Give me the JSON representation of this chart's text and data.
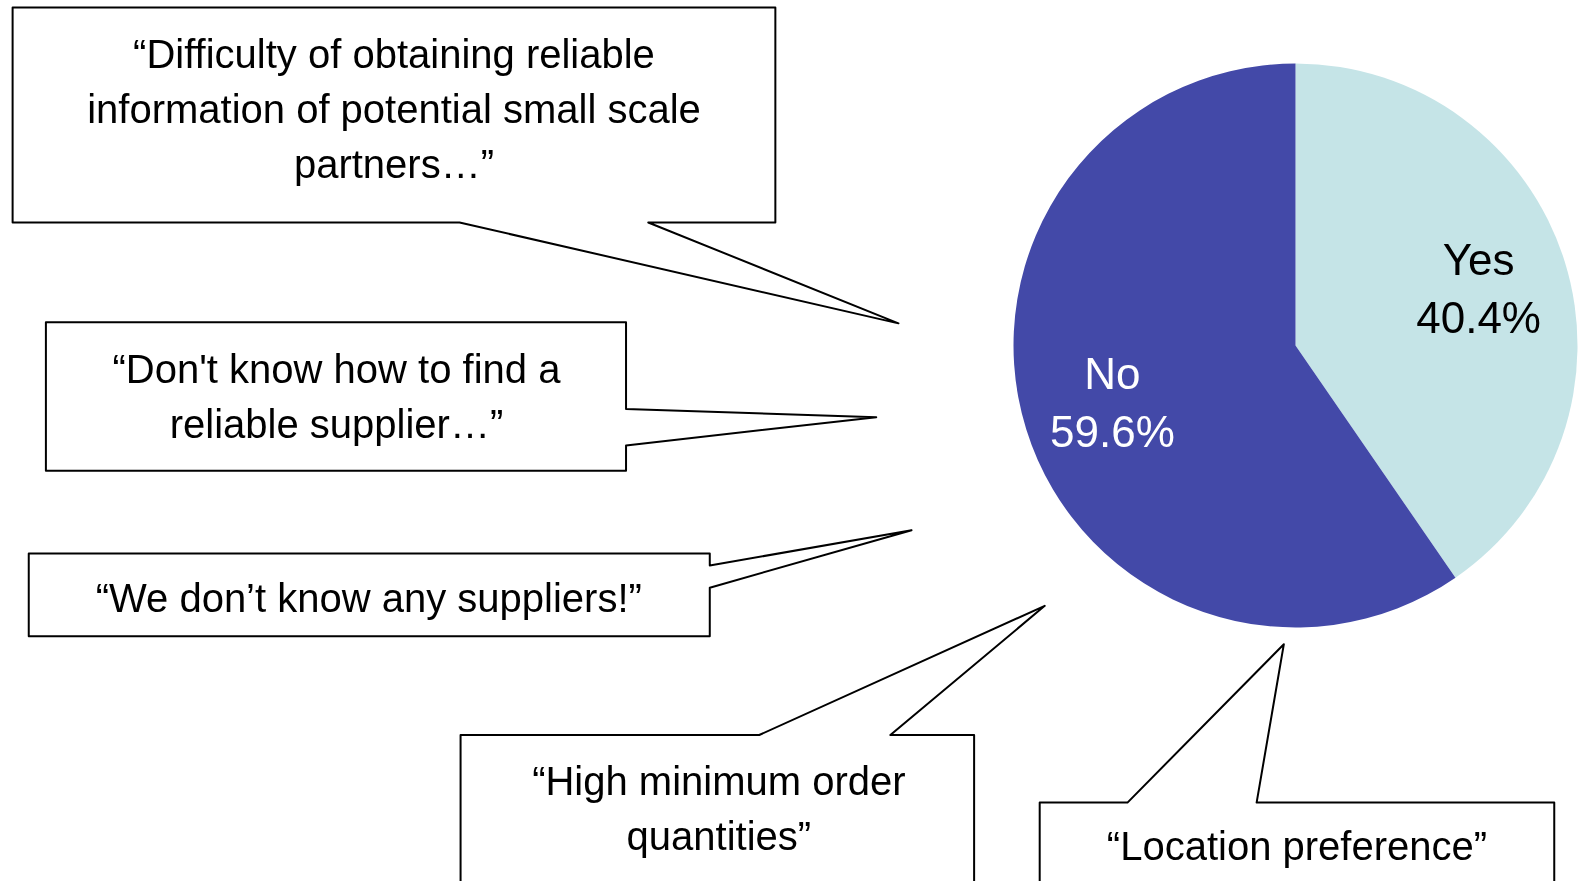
{
  "chart_data": {
    "type": "pie",
    "categories": [
      "Yes",
      "No"
    ],
    "values": [
      40.4,
      59.6
    ],
    "colors": [
      "#c5e4e7",
      "#4349a8"
    ],
    "data_labels": true,
    "value_labels": [
      "40.4%",
      "59.6%"
    ],
    "legend": false,
    "annotations": [
      "“Difficulty of obtaining reliable\ninformation of potential small scale\npartners…”",
      "“Don't know how to find a\nreliable supplier…”",
      "“We don’t know any suppliers!”",
      "“High minimum order\nquantities”",
      "“Location preference”"
    ]
  }
}
